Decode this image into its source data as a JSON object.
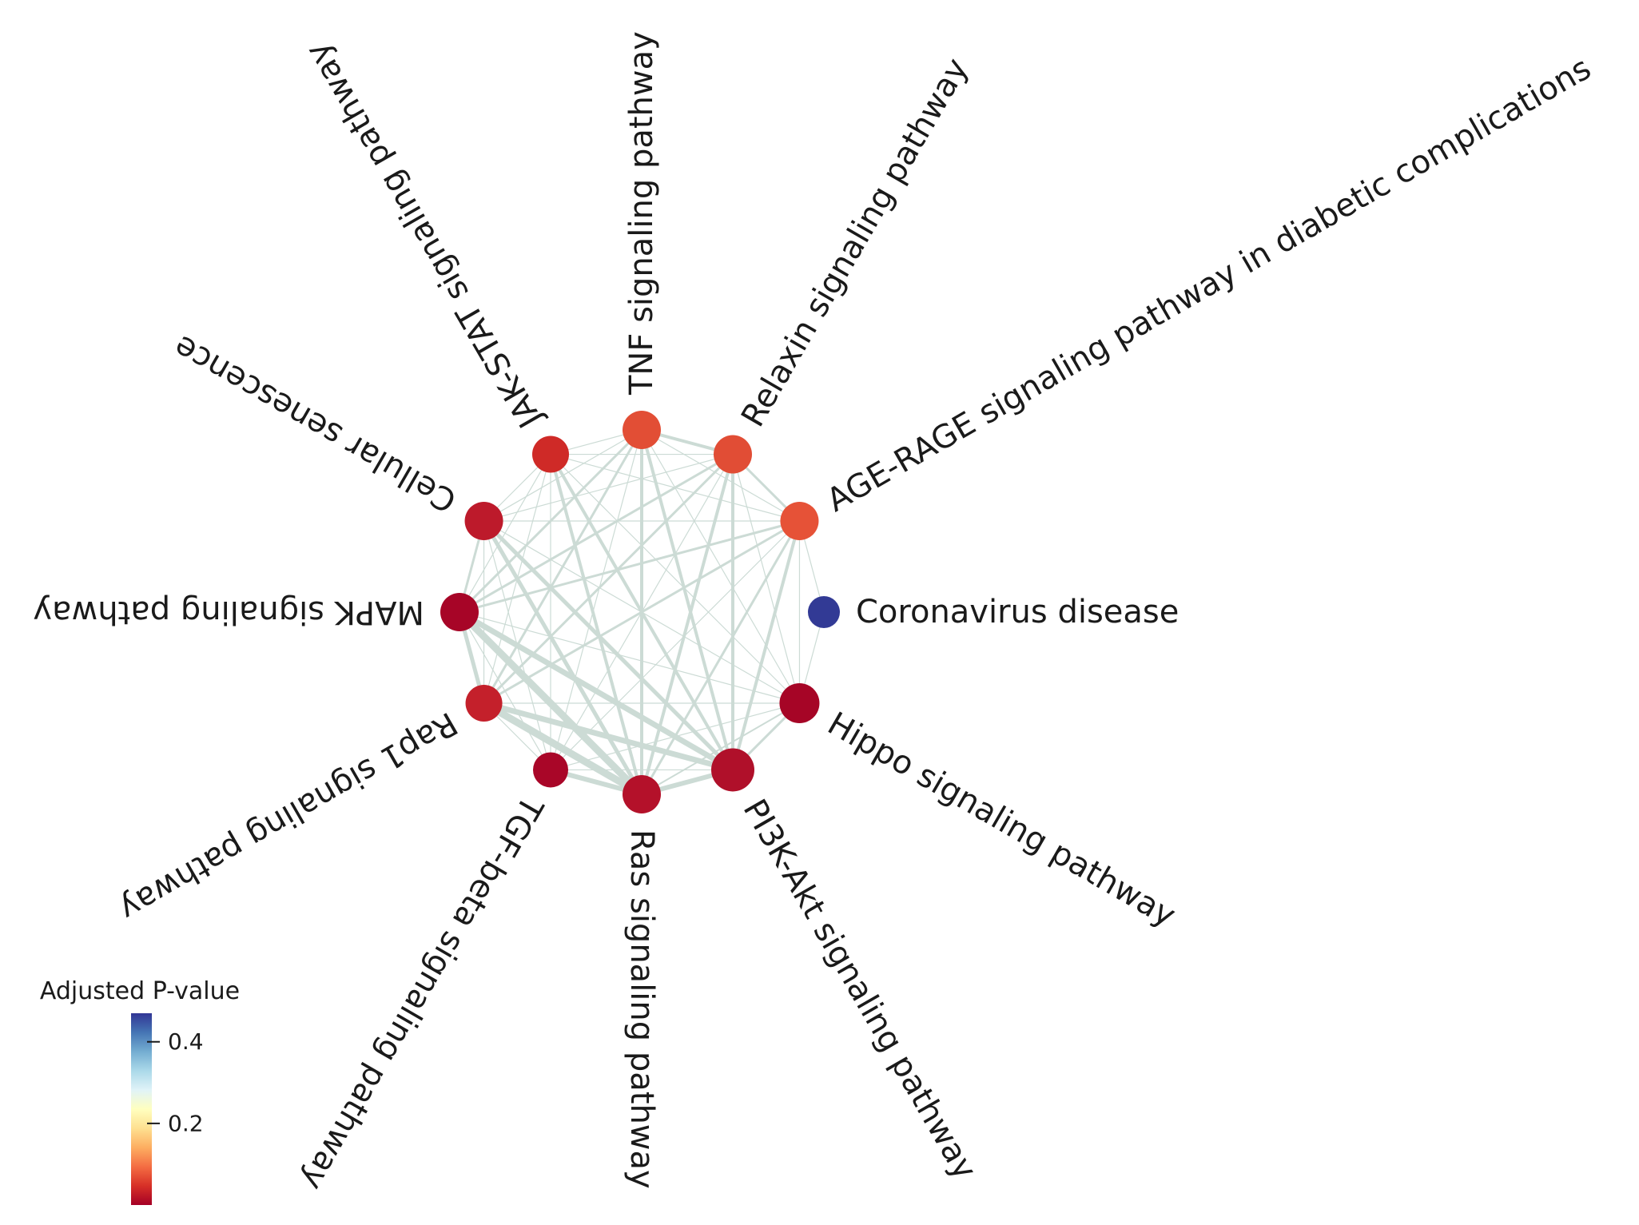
{
  "network": {
    "nodes": [
      {
        "id": "coronavirus",
        "label": "Coronavirus disease",
        "color": "#323a95"
      },
      {
        "id": "age-rage",
        "label": "AGE-RAGE signaling pathway in diabetic complications",
        "color": "#e65237"
      },
      {
        "id": "relaxin",
        "label": "Relaxin signaling pathway",
        "color": "#e14d35"
      },
      {
        "id": "tnf",
        "label": "TNF signaling pathway",
        "color": "#e24e35"
      },
      {
        "id": "jak-stat",
        "label": "JAK-STAT signaling pathway",
        "color": "#cf2a27"
      },
      {
        "id": "cellular-senescence",
        "label": "Cellular senescence",
        "color": "#bd1a2b"
      },
      {
        "id": "mapk",
        "label": "MAPK signaling pathway",
        "color": "#a70527"
      },
      {
        "id": "rap1",
        "label": "Rap1 signaling pathway",
        "color": "#c4202b"
      },
      {
        "id": "tgf-beta",
        "label": "TGF-beta signaling pathway",
        "color": "#a90628"
      },
      {
        "id": "ras",
        "label": "Ras signaling pathway",
        "color": "#b4112a"
      },
      {
        "id": "pi3k-akt",
        "label": "PI3K-Akt signaling pathway",
        "color": "#b0102a"
      },
      {
        "id": "hippo",
        "label": "Hippo signaling pathway",
        "color": "#a60526"
      }
    ],
    "edge_color": "#ccdbd5"
  },
  "colorbar": {
    "title": "Adjusted P-value",
    "ticks": [
      {
        "value": 0.4,
        "label": "0.4"
      },
      {
        "value": 0.2,
        "label": "0.2"
      }
    ],
    "range": [
      0.0,
      0.47
    ],
    "colormap": [
      "#a50026",
      "#d73027",
      "#f46d43",
      "#fdae61",
      "#fee090",
      "#ffffbf",
      "#e0f3f8",
      "#abd9e9",
      "#74add1",
      "#4575b4",
      "#313695"
    ]
  }
}
